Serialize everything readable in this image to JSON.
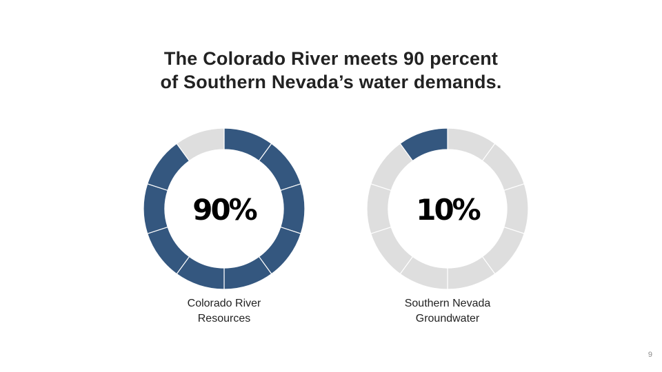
{
  "slide": {
    "title_lines": [
      "The Colorado River meets 90 percent",
      "of Southern Nevada’s water demands."
    ],
    "page_number": "9"
  },
  "colors": {
    "filled": "#34577f",
    "empty": "#dedede",
    "segment_edge": "#ffffff"
  },
  "chart_data": {
    "type": "pie",
    "title": "The Colorado River meets 90 percent of Southern Nevada’s water demands.",
    "segments_per_ring": 10,
    "charts": [
      {
        "label_lines": [
          "Colorado River",
          "Resources"
        ],
        "value": 90,
        "value_label": "90%"
      },
      {
        "label_lines": [
          "Southern Nevada",
          "Groundwater"
        ],
        "value": 10,
        "value_label": "10%"
      }
    ]
  }
}
